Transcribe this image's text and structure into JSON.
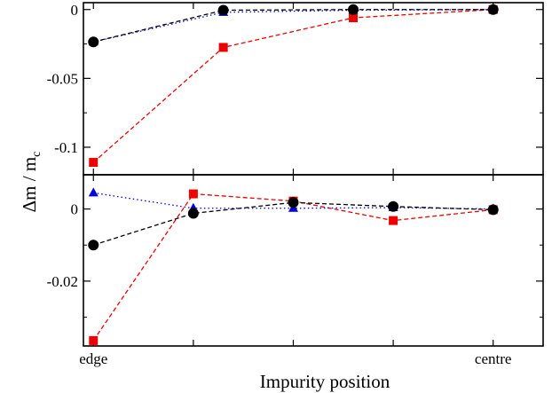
{
  "chart_data": {
    "type": "line",
    "xlabel": "Impurity position",
    "ylabel_main": "Δm / m",
    "ylabel_sub": "c",
    "x_ticks": [
      {
        "x": 1,
        "label": "edge"
      },
      {
        "x": 2,
        "label": ""
      },
      {
        "x": 3,
        "label": ""
      },
      {
        "x": 4,
        "label": ""
      },
      {
        "x": 5,
        "label": "centre"
      }
    ],
    "xlim": [
      0.9,
      5.5
    ],
    "panels": [
      {
        "name": "top",
        "ylim": [
          -0.12,
          0.005
        ],
        "y_ticks": [
          {
            "v": 0,
            "label": "0"
          },
          {
            "v": -0.05,
            "label": "-0.05"
          },
          {
            "v": -0.1,
            "label": "-0.1"
          }
        ],
        "y_minor": [
          -0.025,
          -0.075
        ],
        "series": [
          {
            "marker": "square",
            "color": "#ee0000",
            "dash": "dashed",
            "x": [
              1,
              2.3,
              3.6,
              5
            ],
            "y": [
              -0.111,
              -0.0275,
              -0.006,
              0.0
            ]
          },
          {
            "marker": "triangle",
            "color": "#0000dd",
            "dash": "dotted",
            "x": [
              1,
              2.3,
              3.6,
              5
            ],
            "y": [
              -0.0235,
              -0.002,
              -0.0005,
              0.0
            ]
          },
          {
            "marker": "circle",
            "color": "#000000",
            "dash": "dashed",
            "x": [
              1,
              2.3,
              3.6,
              5
            ],
            "y": [
              -0.0235,
              -0.0005,
              0.0,
              0.0
            ]
          }
        ]
      },
      {
        "name": "bottom",
        "ylim": [
          -0.038,
          0.0095
        ],
        "y_ticks": [
          {
            "v": 0,
            "label": "0"
          },
          {
            "v": -0.02,
            "label": "-0.02"
          }
        ],
        "y_minor": [
          -0.01,
          -0.03
        ],
        "series": [
          {
            "marker": "square",
            "color": "#ee0000",
            "dash": "dashed",
            "x": [
              1,
              2,
              3,
              4,
              5
            ],
            "y": [
              -0.0365,
              0.0042,
              0.0022,
              -0.0032,
              -0.0002
            ]
          },
          {
            "marker": "triangle",
            "color": "#0000dd",
            "dash": "dotted",
            "x": [
              1,
              2,
              3,
              4,
              5
            ],
            "y": [
              0.0045,
              0.0002,
              0.0002,
              0.0004,
              0.0
            ]
          },
          {
            "marker": "circle",
            "color": "#000000",
            "dash": "dashed",
            "x": [
              1,
              2,
              3,
              4,
              5
            ],
            "y": [
              -0.01,
              -0.0012,
              0.0018,
              0.0007,
              -0.0002
            ]
          }
        ]
      }
    ]
  }
}
